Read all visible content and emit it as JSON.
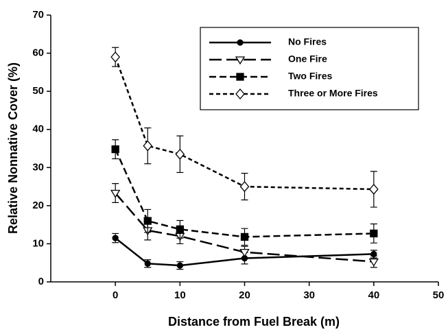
{
  "chart_data": {
    "type": "line",
    "x_label": "Distance from Fuel Break (m)",
    "y_label": "Relative Nonnative Cover (%)",
    "x": [
      0,
      5,
      10,
      20,
      40
    ],
    "xlim": [
      -10,
      50
    ],
    "xticks": [
      0,
      10,
      20,
      30,
      40,
      50
    ],
    "ylim": [
      0,
      70
    ],
    "yticks": [
      0,
      10,
      20,
      30,
      40,
      50,
      60,
      70
    ],
    "legend": "upper right",
    "series": [
      {
        "name": "No Fires",
        "color": "#000000",
        "line_style": "solid",
        "marker": "circle",
        "filled": true,
        "values": [
          11.5,
          4.8,
          4.3,
          6.2,
          7.3
        ],
        "errors": [
          1.2,
          1.0,
          1.0,
          1.5,
          1.0
        ]
      },
      {
        "name": "One Fire",
        "color": "#000000",
        "line_style": "long-dash",
        "marker": "triangle-down",
        "filled": false,
        "values": [
          23.3,
          13.5,
          12.0,
          7.8,
          5.3
        ],
        "errors": [
          2.5,
          2.5,
          2.0,
          1.5,
          1.5
        ]
      },
      {
        "name": "Two Fires",
        "color": "#000000",
        "line_style": "dash",
        "marker": "square",
        "filled": true,
        "values": [
          34.8,
          16.0,
          13.8,
          11.8,
          12.7
        ],
        "errors": [
          2.5,
          3.0,
          2.3,
          2.2,
          2.5
        ]
      },
      {
        "name": "Three or More Fires",
        "color": "#000000",
        "line_style": "short-dash",
        "marker": "diamond",
        "filled": false,
        "values": [
          59.0,
          35.7,
          33.5,
          25.0,
          24.3
        ],
        "errors": [
          2.5,
          4.7,
          4.8,
          3.5,
          4.7
        ]
      }
    ]
  }
}
